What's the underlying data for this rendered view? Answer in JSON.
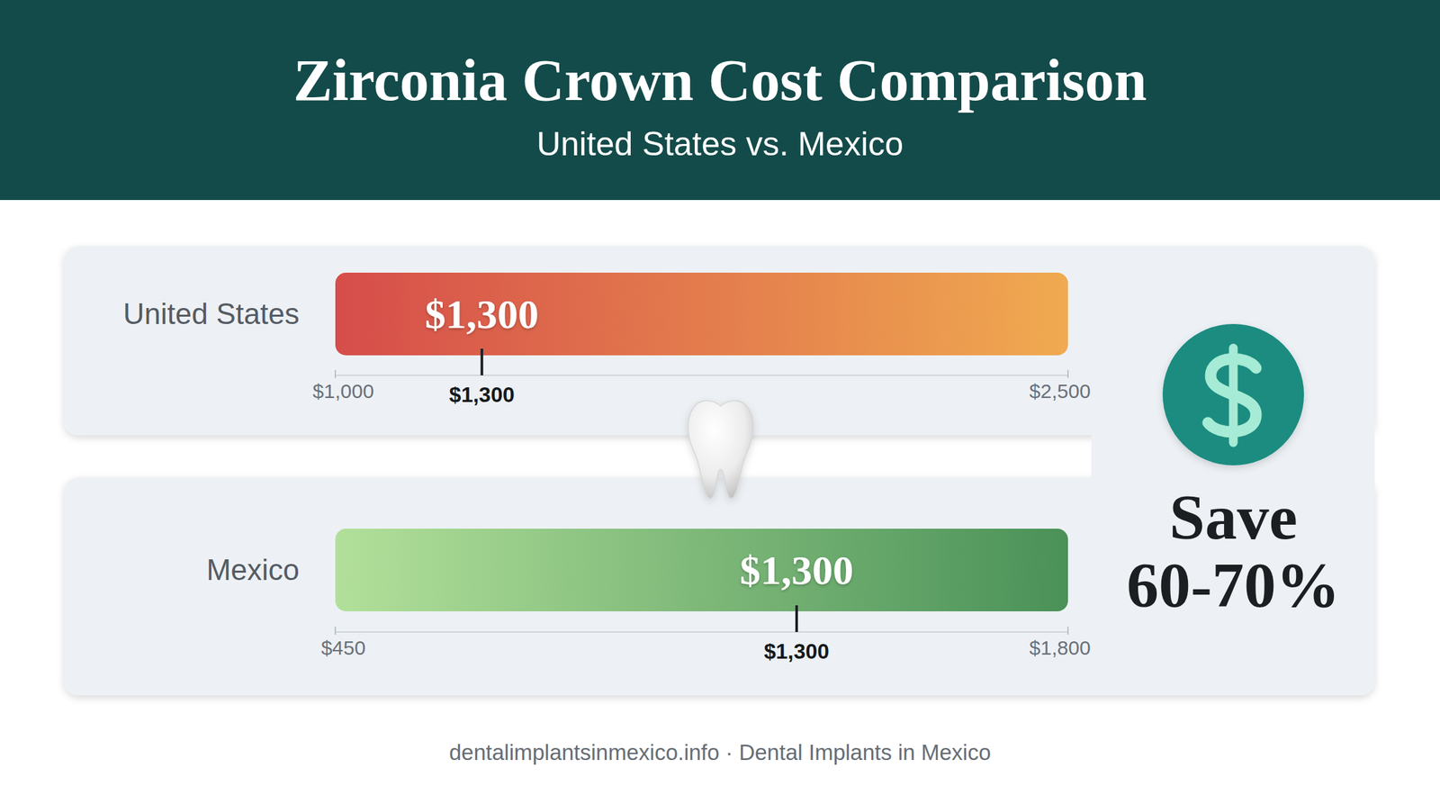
{
  "title": "Zirconia Crown Cost Comparison",
  "subtitle": "United States vs. Mexico",
  "annotation": "Save 60-70%",
  "source": "dentalimplantsinmexico.info · Dental Implants in Mexico",
  "chart_data": [
    {
      "type": "range",
      "orientation": "horizontal",
      "categories": [
        "United States"
      ],
      "values": [
        1300
      ],
      "value_labels": [
        "$1,300"
      ],
      "data_labels": true,
      "xlim": [
        1000,
        2500
      ],
      "xticks": [
        {
          "value": 1000,
          "label": "$1,000"
        },
        {
          "value": 2500,
          "label": "$2,500"
        }
      ]
    },
    {
      "type": "range",
      "orientation": "horizontal",
      "categories": [
        "Mexico"
      ],
      "values": [
        1300
      ],
      "value_labels": [
        "$1,300"
      ],
      "data_labels": true,
      "xlim": [
        450,
        1800
      ],
      "xticks": [
        {
          "value": 450,
          "label": "$450"
        },
        {
          "value": 1800,
          "label": "$1,800"
        }
      ]
    }
  ]
}
